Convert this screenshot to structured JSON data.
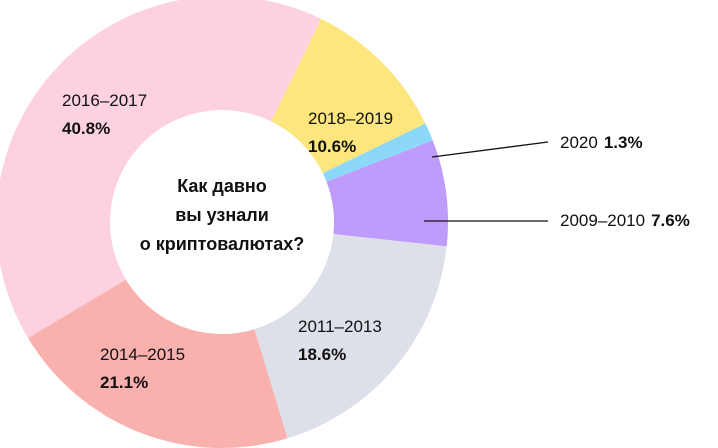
{
  "chart_data": {
    "type": "pie",
    "donut": true,
    "center_title": [
      "Как давно",
      "вы узнали",
      "о криптовалютах?"
    ],
    "slices": [
      {
        "label": "2018–2019",
        "value_text": "10.6%",
        "value": 10.6,
        "color": "#FDE67E"
      },
      {
        "label": "2020",
        "value_text": "1.3%",
        "value": 1.3,
        "color": "#8CD8F9"
      },
      {
        "label": "2009–2010",
        "value_text": "7.6%",
        "value": 7.6,
        "color": "#BF9CFB"
      },
      {
        "label": "2011–2013",
        "value_text": "18.6%",
        "value": 18.6,
        "color": "#DEE0E9"
      },
      {
        "label": "2014–2015",
        "value_text": "21.1%",
        "value": 21.1,
        "color": "#F9B1AE"
      },
      {
        "label": "2016–2017",
        "value_text": "40.8%",
        "value": 40.8,
        "color": "#FED1E0"
      }
    ]
  }
}
